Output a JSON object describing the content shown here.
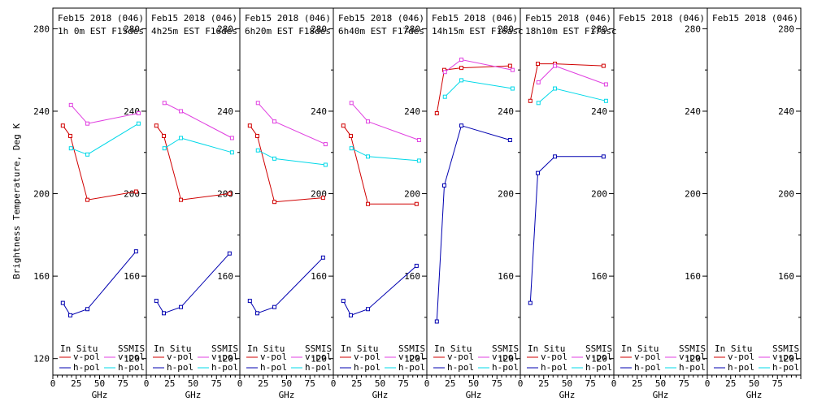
{
  "figure": {
    "ylabel": "Brightness Temperature, Deg K",
    "xlabel": "GHz",
    "x_ticks": [
      0,
      25,
      50,
      75,
      100
    ],
    "y_ticks": [
      120,
      160,
      200,
      240,
      280
    ],
    "legend": {
      "in_situ": "In Situ",
      "ssmis": "SSMIS",
      "vpol": "v-pol",
      "hpol": "h-pol"
    },
    "colors": {
      "insitu_v": "#d00000",
      "insitu_h": "#0000b0",
      "ssmis_v": "#e040e0",
      "ssmis_h": "#00d8e8",
      "axis": "#000000"
    }
  },
  "chart_data": [
    {
      "type": "line",
      "title": "Feb15 2018 (046)",
      "subtitle": "1h 0m  EST F15des",
      "xlim": [
        0,
        100
      ],
      "ylim": [
        112,
        290
      ],
      "series": [
        {
          "key": "insitu_v",
          "x": [
            10.7,
            18.7,
            37,
            89
          ],
          "values": [
            233,
            228,
            197,
            201
          ]
        },
        {
          "key": "insitu_h",
          "x": [
            10.7,
            18.7,
            37,
            89
          ],
          "values": [
            147,
            141,
            144,
            172
          ]
        },
        {
          "key": "ssmis_v",
          "x": [
            19.35,
            37,
            91.65
          ],
          "values": [
            243,
            234,
            239
          ]
        },
        {
          "key": "ssmis_h",
          "x": [
            19.35,
            37,
            91.65
          ],
          "values": [
            222,
            219,
            234
          ]
        }
      ]
    },
    {
      "type": "line",
      "title": "Feb15 2018 (046)",
      "subtitle": "4h25m  EST F16des",
      "xlim": [
        0,
        100
      ],
      "ylim": [
        112,
        290
      ],
      "series": [
        {
          "key": "insitu_v",
          "x": [
            10.7,
            18.7,
            37,
            89
          ],
          "values": [
            233,
            228,
            197,
            200
          ]
        },
        {
          "key": "insitu_h",
          "x": [
            10.7,
            18.7,
            37,
            89
          ],
          "values": [
            148,
            142,
            145,
            171
          ]
        },
        {
          "key": "ssmis_v",
          "x": [
            19.35,
            37,
            91.65
          ],
          "values": [
            244,
            240,
            227
          ]
        },
        {
          "key": "ssmis_h",
          "x": [
            19.35,
            37,
            91.65
          ],
          "values": [
            222,
            227,
            220
          ]
        }
      ]
    },
    {
      "type": "line",
      "title": "Feb15 2018 (046)",
      "subtitle": "6h20m  EST F18des",
      "xlim": [
        0,
        100
      ],
      "ylim": [
        112,
        290
      ],
      "series": [
        {
          "key": "insitu_v",
          "x": [
            10.7,
            18.7,
            37,
            89
          ],
          "values": [
            233,
            228,
            196,
            198
          ]
        },
        {
          "key": "insitu_h",
          "x": [
            10.7,
            18.7,
            37,
            89
          ],
          "values": [
            148,
            142,
            145,
            169
          ]
        },
        {
          "key": "ssmis_v",
          "x": [
            19.35,
            37,
            91.65
          ],
          "values": [
            244,
            235,
            224
          ]
        },
        {
          "key": "ssmis_h",
          "x": [
            19.35,
            37,
            91.65
          ],
          "values": [
            221,
            217,
            214
          ]
        }
      ]
    },
    {
      "type": "line",
      "title": "Feb15 2018 (046)",
      "subtitle": "6h40m  EST F17des",
      "xlim": [
        0,
        100
      ],
      "ylim": [
        112,
        290
      ],
      "series": [
        {
          "key": "insitu_v",
          "x": [
            10.7,
            18.7,
            37,
            89
          ],
          "values": [
            233,
            228,
            195,
            195
          ]
        },
        {
          "key": "insitu_h",
          "x": [
            10.7,
            18.7,
            37,
            89
          ],
          "values": [
            148,
            141,
            144,
            165
          ]
        },
        {
          "key": "ssmis_v",
          "x": [
            19.35,
            37,
            91.65
          ],
          "values": [
            244,
            235,
            226
          ]
        },
        {
          "key": "ssmis_h",
          "x": [
            19.35,
            37,
            91.65
          ],
          "values": [
            222,
            218,
            216
          ]
        }
      ]
    },
    {
      "type": "line",
      "title": "Feb15 2018 (046)",
      "subtitle": "14h15m  EST F16asc",
      "xlim": [
        0,
        100
      ],
      "ylim": [
        112,
        290
      ],
      "series": [
        {
          "key": "insitu_v",
          "x": [
            10.7,
            18.7,
            37,
            89
          ],
          "values": [
            239,
            260,
            261,
            262
          ]
        },
        {
          "key": "insitu_h",
          "x": [
            10.7,
            18.7,
            37,
            89
          ],
          "values": [
            138,
            204,
            233,
            226
          ]
        },
        {
          "key": "ssmis_v",
          "x": [
            19.35,
            37,
            91.65
          ],
          "values": [
            259,
            265,
            260
          ]
        },
        {
          "key": "ssmis_h",
          "x": [
            19.35,
            37,
            91.65
          ],
          "values": [
            247,
            255,
            251
          ]
        }
      ]
    },
    {
      "type": "line",
      "title": "Feb15 2018 (046)",
      "subtitle": "18h10m  EST F17asc",
      "xlim": [
        0,
        100
      ],
      "ylim": [
        112,
        290
      ],
      "series": [
        {
          "key": "insitu_v",
          "x": [
            10.7,
            18.7,
            37,
            89
          ],
          "values": [
            245,
            263,
            263,
            262
          ]
        },
        {
          "key": "insitu_h",
          "x": [
            10.7,
            18.7,
            37,
            89
          ],
          "values": [
            147,
            210,
            218,
            218
          ]
        },
        {
          "key": "ssmis_v",
          "x": [
            19.35,
            37,
            91.65
          ],
          "values": [
            254,
            262,
            253
          ]
        },
        {
          "key": "ssmis_h",
          "x": [
            19.35,
            37,
            91.65
          ],
          "values": [
            244,
            251,
            245
          ]
        }
      ]
    },
    {
      "type": "line",
      "title": "Feb15 2018 (046)",
      "subtitle": "",
      "xlim": [
        0,
        100
      ],
      "ylim": [
        112,
        290
      ],
      "series": []
    },
    {
      "type": "line",
      "title": "Feb15 2018 (046)",
      "subtitle": "",
      "xlim": [
        0,
        100
      ],
      "ylim": [
        112,
        290
      ],
      "series": []
    }
  ]
}
